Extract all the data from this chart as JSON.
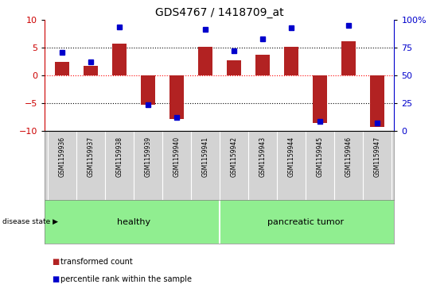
{
  "title": "GDS4767 / 1418709_at",
  "samples": [
    "GSM1159936",
    "GSM1159937",
    "GSM1159938",
    "GSM1159939",
    "GSM1159940",
    "GSM1159941",
    "GSM1159942",
    "GSM1159943",
    "GSM1159944",
    "GSM1159945",
    "GSM1159946",
    "GSM1159947"
  ],
  "transformed_count": [
    2.5,
    1.8,
    5.8,
    -5.3,
    -7.8,
    5.2,
    2.7,
    3.7,
    5.2,
    -8.5,
    6.2,
    -9.2
  ],
  "percentile_rank": [
    4.2,
    2.5,
    8.7,
    -5.3,
    -7.5,
    8.4,
    4.5,
    6.6,
    8.6,
    -8.2,
    9.1,
    -8.5
  ],
  "ylim_left": [
    -10,
    10
  ],
  "ylim_right": [
    0,
    100
  ],
  "yticks_left": [
    -10,
    -5,
    0,
    5,
    10
  ],
  "yticks_right": [
    0,
    25,
    50,
    75,
    100
  ],
  "bar_color": "#b22222",
  "dot_color": "#0000cc",
  "healthy_label": "healthy",
  "tumor_label": "pancreatic tumor",
  "disease_state_label": "disease state",
  "legend_bar_label": "transformed count",
  "legend_dot_label": "percentile rank within the sample",
  "group_color": "#90ee90",
  "label_bg_color": "#d3d3d3",
  "bg_color": "#ffffff",
  "tick_label_color_left": "#cc0000",
  "tick_label_color_right": "#0000cc",
  "bar_width": 0.5,
  "n_healthy": 6,
  "n_tumor": 6
}
